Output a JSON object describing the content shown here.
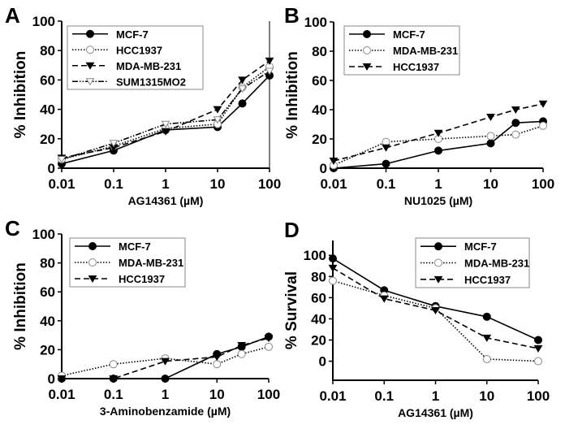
{
  "chart_data": [
    {
      "panel_label": "A",
      "type": "line",
      "xlabel": "AG14361 (µM)",
      "ylabel": "% Inhibition",
      "x_scale": "log",
      "xlim": [
        0.01,
        100
      ],
      "ylim": [
        0,
        100
      ],
      "x_ticks": [
        "0.01",
        "0.1",
        "1",
        "10",
        "100"
      ],
      "y_ticks": [
        "0",
        "20",
        "40",
        "60",
        "80",
        "100"
      ],
      "legend_position": "top-left",
      "grid": false,
      "x": [
        0.01,
        0.1,
        1,
        10,
        30,
        100
      ],
      "series": [
        {
          "name": "MCF-7",
          "marker": "filled-circle",
          "line": "solid",
          "values": [
            3,
            12,
            26,
            28,
            44,
            63
          ]
        },
        {
          "name": "HCC1937",
          "marker": "open-circle",
          "line": "dotted",
          "values": [
            6,
            15,
            27,
            30,
            55,
            69
          ]
        },
        {
          "name": "MDA-MB-231",
          "marker": "filled-triangle-down",
          "line": "dashed",
          "values": [
            7,
            14,
            25,
            40,
            60,
            73
          ]
        },
        {
          "name": "SUM1315MO2",
          "marker": "open-triangle-down",
          "line": "dash-dot-dot",
          "values": [
            6,
            17,
            30,
            33,
            54,
            66
          ]
        }
      ]
    },
    {
      "panel_label": "B",
      "type": "line",
      "xlabel": "NU1025 (µM)",
      "ylabel": "% Inhibition",
      "x_scale": "log",
      "xlim": [
        0.01,
        100
      ],
      "ylim": [
        0,
        100
      ],
      "x_ticks": [
        "0.01",
        "0.1",
        "1",
        "10",
        "100"
      ],
      "y_ticks": [
        "0",
        "20",
        "40",
        "60",
        "80",
        "100"
      ],
      "legend_position": "top-left",
      "grid": false,
      "x": [
        0.01,
        0.1,
        1,
        10,
        30,
        100
      ],
      "series": [
        {
          "name": "MCF-7",
          "marker": "filled-circle",
          "line": "solid",
          "values": [
            0,
            3,
            12,
            17,
            31,
            32
          ]
        },
        {
          "name": "MDA-MB-231",
          "marker": "open-circle",
          "line": "dotted",
          "values": [
            2,
            18,
            20,
            22,
            23,
            29
          ]
        },
        {
          "name": "HCC1937",
          "marker": "filled-triangle-down",
          "line": "dashed",
          "values": [
            5,
            14,
            24,
            35,
            40,
            44
          ]
        }
      ]
    },
    {
      "panel_label": "C",
      "type": "line",
      "xlabel": "3-Aminobenzamide (µM)",
      "ylabel": "% Inhibition",
      "x_scale": "log",
      "xlim": [
        0.01,
        100
      ],
      "ylim": [
        0,
        100
      ],
      "x_ticks": [
        "0.01",
        "0.1",
        "1",
        "10",
        "100"
      ],
      "y_ticks": [
        "0",
        "20",
        "40",
        "60",
        "80",
        "100"
      ],
      "legend_position": "top-left",
      "grid": false,
      "x": [
        0.01,
        0.1,
        1,
        10,
        30,
        100
      ],
      "series": [
        {
          "name": "MCF-7",
          "marker": "filled-circle",
          "line": "solid",
          "values": [
            0,
            0,
            0,
            17,
            22,
            29
          ]
        },
        {
          "name": "MDA-MB-231",
          "marker": "open-circle",
          "line": "dotted",
          "values": [
            2,
            10,
            14,
            10,
            17,
            22
          ]
        },
        {
          "name": "HCC1937",
          "marker": "filled-triangle-down",
          "line": "dashed",
          "values": [
            0,
            0,
            12,
            15,
            23,
            28
          ]
        }
      ]
    },
    {
      "panel_label": "D",
      "type": "line",
      "xlabel": "AG14361 (µM)",
      "ylabel": "% Survival",
      "x_scale": "log",
      "xlim": [
        0.01,
        100
      ],
      "ylim": [
        -18,
        114
      ],
      "x_ticks": [
        "0.01",
        "0.1",
        "1",
        "10",
        "100"
      ],
      "y_ticks": [
        "0",
        "20",
        "40",
        "60",
        "80",
        "100"
      ],
      "legend_position": "top-right",
      "grid": false,
      "x": [
        0.01,
        0.1,
        1,
        10,
        100
      ],
      "series": [
        {
          "name": "MCF-7",
          "marker": "filled-circle",
          "line": "solid",
          "values": [
            97,
            67,
            52,
            42,
            20
          ]
        },
        {
          "name": "MDA-MB-231",
          "marker": "open-circle",
          "line": "dotted",
          "values": [
            76,
            62,
            50,
            2,
            0
          ]
        },
        {
          "name": "HCC1937",
          "marker": "filled-triangle-down",
          "line": "dashed",
          "values": [
            88,
            59,
            48,
            22,
            12
          ]
        }
      ]
    }
  ]
}
